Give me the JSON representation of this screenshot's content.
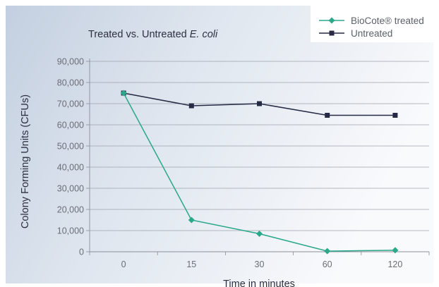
{
  "chart_data": {
    "type": "line",
    "title_prefix": "Treated vs. Untreated ",
    "title_italic": "E. coli",
    "xlabel": "Time in minutes",
    "ylabel": "Colony Forming Units (CFUs)",
    "categories": [
      "0",
      "15",
      "30",
      "60",
      "120"
    ],
    "ylim": [
      0,
      90000
    ],
    "y_ticks": [
      0,
      10000,
      20000,
      30000,
      40000,
      50000,
      60000,
      70000,
      80000,
      90000
    ],
    "y_tick_labels": [
      "0",
      "10,000",
      "20,000",
      "30,000",
      "40,000",
      "50,000",
      "60,000",
      "70,000",
      "80,000",
      "90,000"
    ],
    "grid": true,
    "legend_position": "top-right",
    "series": [
      {
        "name": "BioCote® treated",
        "values": [
          75000,
          15000,
          8500,
          300,
          700
        ],
        "color": "#2aa889",
        "marker": "diamond"
      },
      {
        "name": "Untreated",
        "values": [
          75000,
          69000,
          70000,
          64500,
          64500
        ],
        "color": "#262a44",
        "marker": "square"
      }
    ]
  }
}
